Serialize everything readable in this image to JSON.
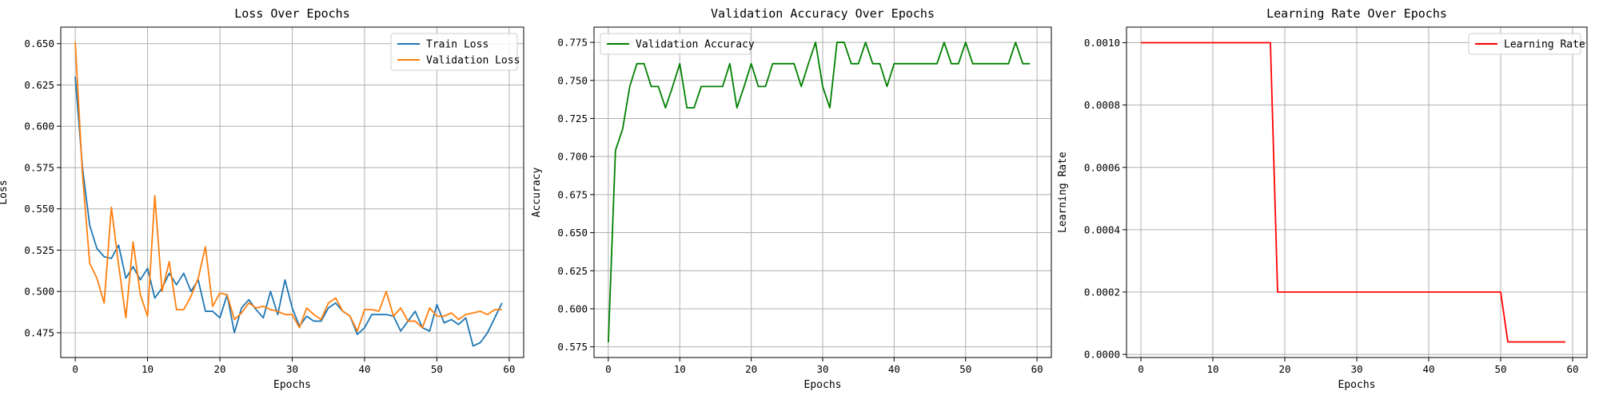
{
  "chart_data": [
    {
      "type": "line",
      "title": "Loss Over Epochs",
      "xlabel": "Epochs",
      "ylabel": "Loss",
      "xlim": [
        -2,
        62
      ],
      "ylim": [
        0.46,
        0.66
      ],
      "xticks": [
        0,
        10,
        20,
        30,
        40,
        50,
        60
      ],
      "yticks": [
        0.475,
        0.5,
        0.525,
        0.55,
        0.575,
        0.6,
        0.625,
        0.65
      ],
      "ytick_labels": [
        "0.475",
        "0.500",
        "0.525",
        "0.550",
        "0.575",
        "0.600",
        "0.625",
        "0.650"
      ],
      "grid": true,
      "legend_position": "top-right",
      "series": [
        {
          "name": "Train Loss",
          "color": "#1f77b4",
          "x": [
            0,
            1,
            2,
            3,
            4,
            5,
            6,
            7,
            8,
            9,
            10,
            11,
            12,
            13,
            14,
            15,
            16,
            17,
            18,
            19,
            20,
            21,
            22,
            23,
            24,
            25,
            26,
            27,
            28,
            29,
            30,
            31,
            32,
            33,
            34,
            35,
            36,
            37,
            38,
            39,
            40,
            41,
            42,
            43,
            44,
            45,
            46,
            47,
            48,
            49,
            50,
            51,
            52,
            53,
            54,
            55,
            56,
            57,
            58,
            59
          ],
          "values": [
            0.63,
            0.575,
            0.54,
            0.526,
            0.521,
            0.52,
            0.528,
            0.508,
            0.515,
            0.507,
            0.514,
            0.496,
            0.502,
            0.511,
            0.504,
            0.511,
            0.5,
            0.507,
            0.488,
            0.488,
            0.484,
            0.498,
            0.475,
            0.49,
            0.495,
            0.489,
            0.484,
            0.5,
            0.486,
            0.507,
            0.49,
            0.479,
            0.485,
            0.482,
            0.482,
            0.49,
            0.493,
            0.488,
            0.485,
            0.474,
            0.478,
            0.486,
            0.486,
            0.486,
            0.485,
            0.476,
            0.482,
            0.488,
            0.478,
            0.476,
            0.492,
            0.481,
            0.483,
            0.48,
            0.484,
            0.467,
            0.469,
            0.475,
            0.484,
            0.493
          ]
        },
        {
          "name": "Validation Loss",
          "color": "#ff7f0e",
          "x": [
            0,
            1,
            2,
            3,
            4,
            5,
            6,
            7,
            8,
            9,
            10,
            11,
            12,
            13,
            14,
            15,
            16,
            17,
            18,
            19,
            20,
            21,
            22,
            23,
            24,
            25,
            26,
            27,
            28,
            29,
            30,
            31,
            32,
            33,
            34,
            35,
            36,
            37,
            38,
            39,
            40,
            41,
            42,
            43,
            44,
            45,
            46,
            47,
            48,
            49,
            50,
            51,
            52,
            53,
            54,
            55,
            56,
            57,
            58,
            59
          ],
          "values": [
            0.651,
            0.571,
            0.517,
            0.508,
            0.493,
            0.551,
            0.516,
            0.484,
            0.53,
            0.498,
            0.485,
            0.558,
            0.5,
            0.518,
            0.489,
            0.489,
            0.497,
            0.508,
            0.527,
            0.491,
            0.499,
            0.498,
            0.483,
            0.487,
            0.493,
            0.49,
            0.491,
            0.489,
            0.488,
            0.486,
            0.486,
            0.478,
            0.49,
            0.486,
            0.483,
            0.493,
            0.496,
            0.488,
            0.485,
            0.476,
            0.489,
            0.489,
            0.488,
            0.5,
            0.485,
            0.49,
            0.482,
            0.482,
            0.478,
            0.49,
            0.485,
            0.485,
            0.487,
            0.483,
            0.486,
            0.487,
            0.488,
            0.486,
            0.489,
            0.489
          ]
        }
      ]
    },
    {
      "type": "line",
      "title": "Validation Accuracy Over Epochs",
      "xlabel": "Epochs",
      "ylabel": "Accuracy",
      "xlim": [
        -2,
        62
      ],
      "ylim": [
        0.568,
        0.785
      ],
      "xticks": [
        0,
        10,
        20,
        30,
        40,
        50,
        60
      ],
      "yticks": [
        0.575,
        0.6,
        0.625,
        0.65,
        0.675,
        0.7,
        0.725,
        0.75,
        0.775
      ],
      "ytick_labels": [
        "0.575",
        "0.600",
        "0.625",
        "0.650",
        "0.675",
        "0.700",
        "0.725",
        "0.750",
        "0.775"
      ],
      "grid": true,
      "legend_position": "top-left",
      "series": [
        {
          "name": "Validation Accuracy",
          "color": "#008000",
          "x": [
            0,
            1,
            2,
            3,
            4,
            5,
            6,
            7,
            8,
            9,
            10,
            11,
            12,
            13,
            14,
            15,
            16,
            17,
            18,
            19,
            20,
            21,
            22,
            23,
            24,
            25,
            26,
            27,
            28,
            29,
            30,
            31,
            32,
            33,
            34,
            35,
            36,
            37,
            38,
            39,
            40,
            41,
            42,
            43,
            44,
            45,
            46,
            47,
            48,
            49,
            50,
            51,
            52,
            53,
            54,
            55,
            56,
            57,
            58,
            59
          ],
          "values": [
            0.578,
            0.704,
            0.718,
            0.746,
            0.761,
            0.761,
            0.746,
            0.746,
            0.732,
            0.746,
            0.761,
            0.732,
            0.732,
            0.746,
            0.746,
            0.746,
            0.746,
            0.761,
            0.732,
            0.746,
            0.761,
            0.746,
            0.746,
            0.761,
            0.761,
            0.761,
            0.761,
            0.746,
            0.761,
            0.775,
            0.746,
            0.732,
            0.775,
            0.775,
            0.761,
            0.761,
            0.775,
            0.761,
            0.761,
            0.746,
            0.761,
            0.761,
            0.761,
            0.761,
            0.761,
            0.761,
            0.761,
            0.775,
            0.761,
            0.761,
            0.775,
            0.761,
            0.761,
            0.761,
            0.761,
            0.761,
            0.761,
            0.775,
            0.761,
            0.761
          ]
        }
      ]
    },
    {
      "type": "line",
      "title": "Learning Rate Over Epochs",
      "xlabel": "Epochs",
      "ylabel": "Learning Rate",
      "xlim": [
        -2,
        62
      ],
      "ylim": [
        -1e-05,
        0.00105
      ],
      "xticks": [
        0,
        10,
        20,
        30,
        40,
        50,
        60
      ],
      "yticks": [
        0,
        0.0002,
        0.0004,
        0.0006,
        0.0008,
        0.001
      ],
      "ytick_labels": [
        "0.0000",
        "0.0002",
        "0.0004",
        "0.0006",
        "0.0008",
        "0.0010"
      ],
      "grid": true,
      "legend_position": "top-right",
      "series": [
        {
          "name": "Learning Rate",
          "color": "#ff0000",
          "x": [
            0,
            1,
            2,
            3,
            4,
            5,
            6,
            7,
            8,
            9,
            10,
            11,
            12,
            13,
            14,
            15,
            16,
            17,
            18,
            19,
            20,
            21,
            22,
            23,
            24,
            25,
            26,
            27,
            28,
            29,
            30,
            31,
            32,
            33,
            34,
            35,
            36,
            37,
            38,
            39,
            40,
            41,
            42,
            43,
            44,
            45,
            46,
            47,
            48,
            49,
            50,
            51,
            52,
            53,
            54,
            55,
            56,
            57,
            58,
            59
          ],
          "values": [
            0.001,
            0.001,
            0.001,
            0.001,
            0.001,
            0.001,
            0.001,
            0.001,
            0.001,
            0.001,
            0.001,
            0.001,
            0.001,
            0.001,
            0.001,
            0.001,
            0.001,
            0.001,
            0.001,
            0.0002,
            0.0002,
            0.0002,
            0.0002,
            0.0002,
            0.0002,
            0.0002,
            0.0002,
            0.0002,
            0.0002,
            0.0002,
            0.0002,
            0.0002,
            0.0002,
            0.0002,
            0.0002,
            0.0002,
            0.0002,
            0.0002,
            0.0002,
            0.0002,
            0.0002,
            0.0002,
            0.0002,
            0.0002,
            0.0002,
            0.0002,
            0.0002,
            0.0002,
            0.0002,
            0.0002,
            0.0002,
            4e-05,
            4e-05,
            4e-05,
            4e-05,
            4e-05,
            4e-05,
            4e-05,
            4e-05,
            4e-05
          ]
        }
      ]
    }
  ]
}
